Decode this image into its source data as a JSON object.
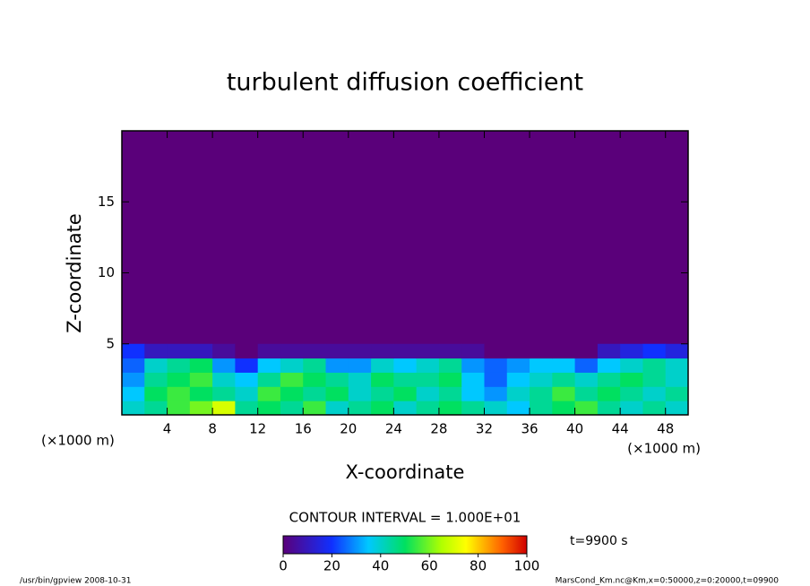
{
  "chart_data": {
    "type": "heatmap",
    "title": "turbulent diffusion coefficient",
    "x_label": "X-coordinate",
    "y_label": "Z-coordinate",
    "x_unit": "(×1000 m)",
    "y_unit": "(×1000 m)",
    "x": [
      1,
      3,
      5,
      7,
      9,
      11,
      13,
      15,
      17,
      19,
      21,
      23,
      25,
      27,
      29,
      31,
      33,
      35,
      37,
      39,
      41,
      43,
      45,
      47,
      49
    ],
    "y": [
      0.5,
      1.5,
      2.5,
      3.5,
      4.5
    ],
    "values": [
      [
        40,
        45,
        55,
        60,
        70,
        45,
        50,
        45,
        55,
        40,
        45,
        50,
        40,
        45,
        50,
        45,
        40,
        35,
        45,
        50,
        55,
        45,
        40,
        45,
        40
      ],
      [
        35,
        50,
        55,
        50,
        45,
        40,
        55,
        50,
        45,
        50,
        40,
        45,
        50,
        40,
        45,
        35,
        30,
        40,
        45,
        55,
        45,
        50,
        45,
        40,
        45
      ],
      [
        30,
        45,
        50,
        55,
        40,
        35,
        45,
        55,
        50,
        45,
        40,
        50,
        45,
        45,
        50,
        35,
        25,
        35,
        40,
        45,
        40,
        45,
        50,
        45,
        40
      ],
      [
        25,
        40,
        45,
        50,
        30,
        20,
        35,
        40,
        45,
        30,
        30,
        40,
        35,
        40,
        45,
        30,
        25,
        30,
        35,
        35,
        25,
        35,
        40,
        45,
        40
      ],
      [
        20,
        10,
        10,
        10,
        5,
        0,
        5,
        5,
        5,
        5,
        5,
        5,
        5,
        5,
        5,
        5,
        0,
        0,
        0,
        0,
        0,
        10,
        15,
        20,
        15
      ]
    ],
    "xlim": [
      0,
      50
    ],
    "ylim": [
      0,
      20
    ],
    "xticks": [
      4,
      8,
      12,
      16,
      20,
      24,
      28,
      32,
      36,
      40,
      44,
      48
    ],
    "yticks": [
      5,
      10,
      15
    ],
    "colorbar": {
      "lim": [
        0,
        100
      ],
      "ticks": [
        0,
        20,
        40,
        60,
        80,
        100
      ]
    },
    "contour_interval": "CONTOUR INTERVAL = 1.000E+01",
    "time_label": "t=9900 s",
    "footer_left": "/usr/bin/gpview   2008-10-31",
    "footer_right": "MarsCond_Km.nc@Km,x=0:50000,z=0:20000,t=09900"
  }
}
